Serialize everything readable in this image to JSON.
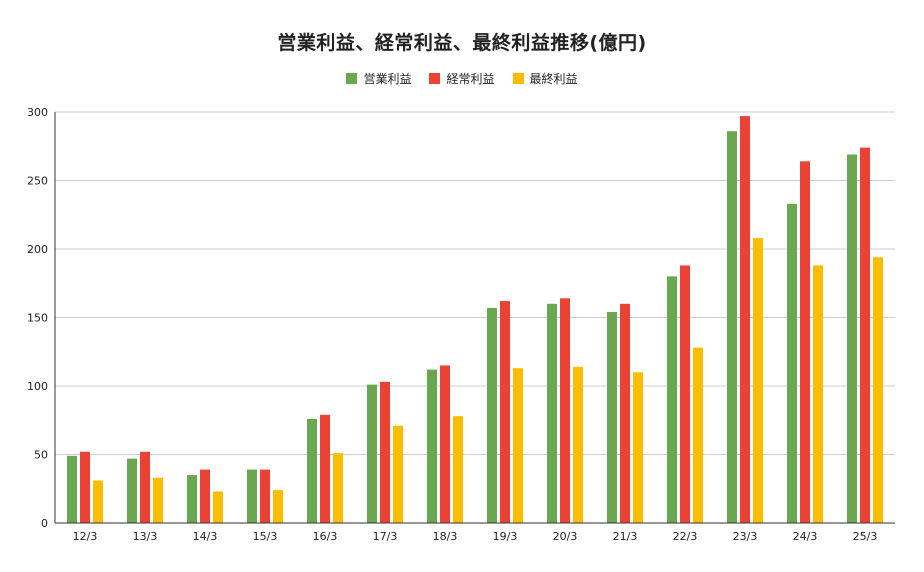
{
  "chart_data": {
    "type": "bar",
    "title": "営業利益、経常利益、最終利益推移(億円)",
    "xlabel": "",
    "ylabel": "",
    "ylim": [
      0,
      300
    ],
    "yticks": [
      0,
      50,
      100,
      150,
      200,
      250,
      300
    ],
    "grid": true,
    "legend_position": "top-center",
    "categories": [
      "12/3",
      "13/3",
      "14/3",
      "15/3",
      "16/3",
      "17/3",
      "18/3",
      "19/3",
      "20/3",
      "21/3",
      "22/3",
      "23/3",
      "24/3",
      "25/3"
    ],
    "series": [
      {
        "name": "営業利益",
        "color": "#6aa84f",
        "values": [
          49,
          47,
          35,
          39,
          76,
          101,
          112,
          157,
          160,
          154,
          180,
          286,
          233,
          269
        ]
      },
      {
        "name": "経常利益",
        "color": "#ea4335",
        "values": [
          52,
          52,
          39,
          39,
          79,
          103,
          115,
          162,
          164,
          160,
          188,
          297,
          264,
          274
        ]
      },
      {
        "name": "最終利益",
        "color": "#fbbc04",
        "values": [
          31,
          33,
          23,
          24,
          51,
          71,
          78,
          113,
          114,
          110,
          128,
          208,
          188,
          194
        ]
      }
    ]
  }
}
